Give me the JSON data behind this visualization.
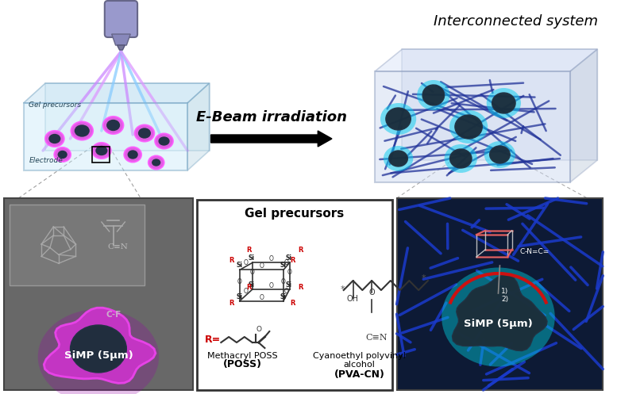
{
  "title_right": "Interconnected system",
  "arrow_label": "E-Beam irradiation",
  "gel_precursors_title": "Gel precursors",
  "poss_label": "Methacryl POSS",
  "poss_abbrev": "(POSS)",
  "pva_label": "Cyanoethyl polyvinyl\nalcohol",
  "pva_abbrev": "(PVA-CN)",
  "simp_label_left": "SiMP (5μm)",
  "simp_label_right": "SiMP (5μm)",
  "cf_label": "C-F",
  "background_color": "#ffffff",
  "title_fontsize": 13,
  "arrow_fontsize": 13
}
